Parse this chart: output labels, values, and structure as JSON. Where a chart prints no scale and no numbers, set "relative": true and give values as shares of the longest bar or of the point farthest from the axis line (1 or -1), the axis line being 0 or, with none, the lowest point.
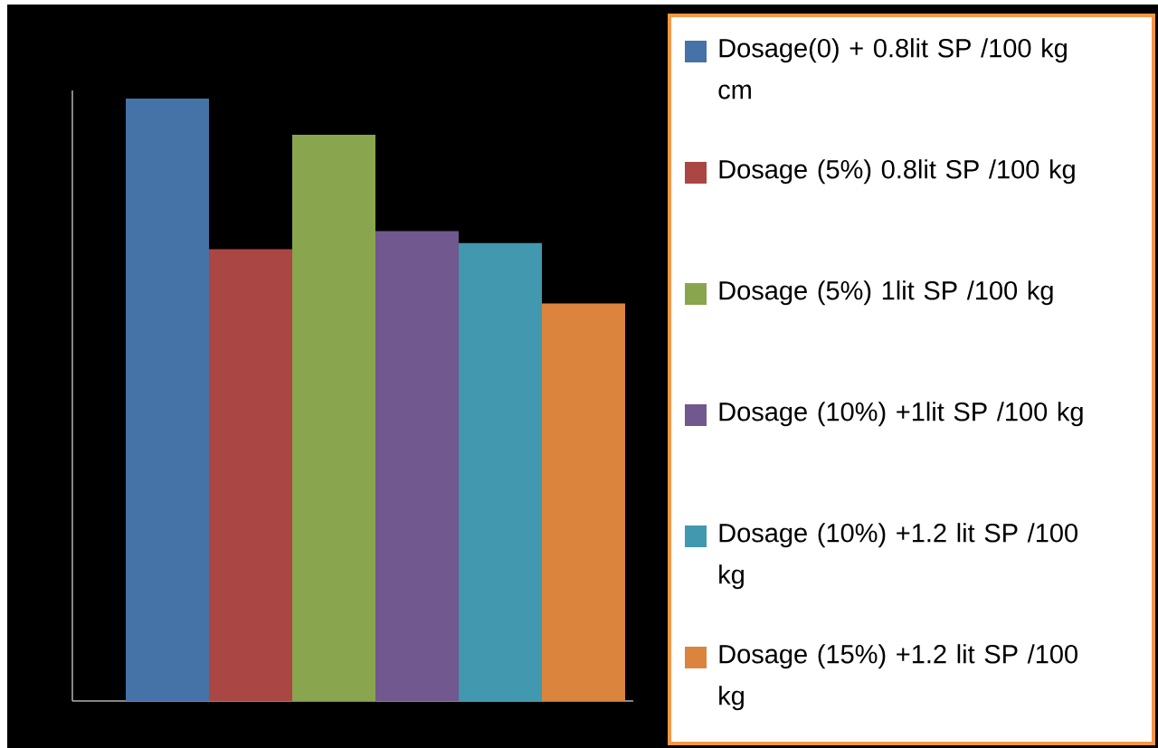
{
  "chart_data": {
    "type": "bar",
    "categories": [
      null
    ],
    "relative": true,
    "legend": "right",
    "series": [
      {
        "name": "Dosage(0) + 0.8lit SP /100 kg cm",
        "color": "#4572a7",
        "values": [
          1
        ]
      },
      {
        "name": "Dosage (5%) 0.8lit SP /100 kg",
        "color": "#aa4643",
        "values": [
          0.75
        ]
      },
      {
        "name": "Dosage (5%) 1lit SP /100 kg",
        "color": "#89a54e",
        "values": [
          0.94
        ]
      },
      {
        "name": "Dosage (10%) +1lit SP /100 kg",
        "color": "#71588f",
        "values": [
          0.78
        ]
      },
      {
        "name": "Dosage (10%) +1.2 lit SP /100 kg",
        "color": "#4198af",
        "values": [
          0.76
        ]
      },
      {
        "name": "Dosage (15%) +1.2 lit SP /100 kg",
        "color": "#db843d",
        "values": [
          0.66
        ]
      }
    ]
  }
}
